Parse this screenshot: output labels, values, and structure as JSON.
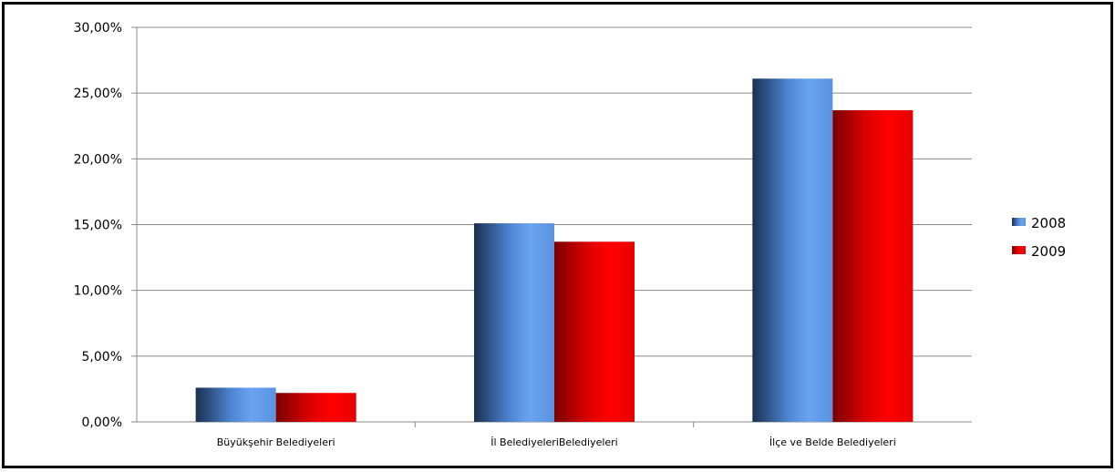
{
  "chart_data": {
    "type": "bar",
    "title": "",
    "xlabel": "",
    "ylabel": "",
    "categories": [
      "Büyükşehir Belediyeleri",
      "İl BelediyeleriBelediyeleri",
      "İlçe ve Belde Belediyeleri"
    ],
    "series": [
      {
        "name": "2008",
        "values": [
          2.6,
          15.1,
          26.1
        ],
        "color": "#5b8fd9"
      },
      {
        "name": "2009",
        "values": [
          2.2,
          13.7,
          23.7
        ],
        "color": "#e00000"
      }
    ],
    "ylim": [
      0,
      30
    ],
    "yticks": [
      0,
      5,
      10,
      15,
      20,
      25,
      30
    ],
    "ytick_labels": [
      "0,00%",
      "5,00%",
      "10,00%",
      "15,00%",
      "20,00%",
      "25,00%",
      "30,00%"
    ],
    "grid": true,
    "legend_position": "right"
  }
}
